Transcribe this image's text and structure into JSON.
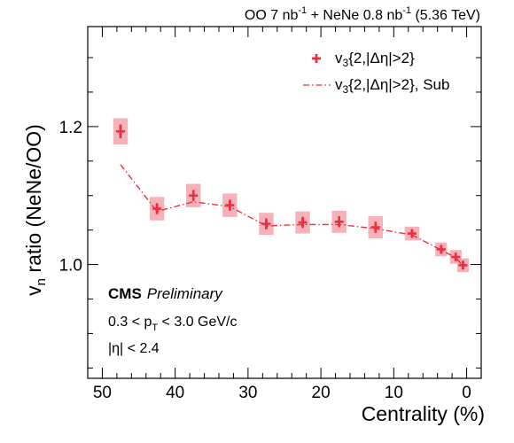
{
  "chart_data": {
    "type": "scatter",
    "header": {
      "a": "OO 7 nb",
      "a_sup": "-1",
      "b": " + NeNe 0.8 nb",
      "b_sup": "-1",
      "c": " (5.36 TeV)"
    },
    "xlabel": "Centrality (%)",
    "ylabel": {
      "v": "v",
      "sub": "n",
      "rest": " ratio (NeNe/OO)"
    },
    "x_reversed": true,
    "xlim": [
      52,
      -2
    ],
    "ylim": [
      0.835,
      1.345
    ],
    "x_ticks": [
      50,
      40,
      30,
      20,
      10,
      0
    ],
    "x_tick_labels": [
      "50",
      "40",
      "30",
      "20",
      "10",
      "0"
    ],
    "y_ticks": [
      1.0,
      1.2
    ],
    "y_tick_labels": [
      "1.0",
      "1.2"
    ],
    "colors": {
      "points": "#e8303f",
      "syst_box": "#f3a5ab",
      "line": "#e8303f"
    },
    "series": [
      {
        "name": "v3{2,|Δη|>2}",
        "legend": {
          "v": "v",
          "sub": "3",
          "rest": "{2,|Δη|>2}"
        },
        "style": "markers",
        "points": [
          {
            "x": 47.5,
            "y": 1.193,
            "err": 0.01,
            "syst": 0.019,
            "xw": 1.0
          },
          {
            "x": 42.5,
            "y": 1.081,
            "err": 0.008,
            "syst": 0.017,
            "xw": 1.0
          },
          {
            "x": 37.5,
            "y": 1.1,
            "err": 0.008,
            "syst": 0.017,
            "xw": 1.0
          },
          {
            "x": 32.5,
            "y": 1.086,
            "err": 0.008,
            "syst": 0.017,
            "xw": 1.0
          },
          {
            "x": 27.5,
            "y": 1.059,
            "err": 0.008,
            "syst": 0.016,
            "xw": 1.0
          },
          {
            "x": 22.5,
            "y": 1.061,
            "err": 0.008,
            "syst": 0.016,
            "xw": 1.0
          },
          {
            "x": 17.5,
            "y": 1.062,
            "err": 0.008,
            "syst": 0.016,
            "xw": 1.0
          },
          {
            "x": 12.5,
            "y": 1.054,
            "err": 0.008,
            "syst": 0.016,
            "xw": 1.0
          },
          {
            "x": 7.5,
            "y": 1.045,
            "err": 0.006,
            "syst": 0.01,
            "xw": 1.0
          },
          {
            "x": 3.5,
            "y": 1.022,
            "err": 0.006,
            "syst": 0.01,
            "xw": 0.8
          },
          {
            "x": 1.5,
            "y": 1.011,
            "err": 0.006,
            "syst": 0.01,
            "xw": 0.8
          },
          {
            "x": 0.5,
            "y": 0.999,
            "err": 0.006,
            "syst": 0.01,
            "xw": 0.8
          }
        ]
      },
      {
        "name": "v3{2,|Δη|>2}, Sub",
        "legend": {
          "v": "v",
          "sub": "3",
          "rest": "{2,|Δη|>2}, Sub"
        },
        "style": "dash-dot-line",
        "points": [
          {
            "x": 47.5,
            "y": 1.145
          },
          {
            "x": 42.5,
            "y": 1.077
          },
          {
            "x": 37.5,
            "y": 1.091
          },
          {
            "x": 32.5,
            "y": 1.084
          },
          {
            "x": 27.5,
            "y": 1.056
          },
          {
            "x": 22.5,
            "y": 1.058
          },
          {
            "x": 17.5,
            "y": 1.058
          },
          {
            "x": 12.5,
            "y": 1.052
          },
          {
            "x": 7.5,
            "y": 1.043
          },
          {
            "x": 3.5,
            "y": 1.021
          },
          {
            "x": 1.5,
            "y": 1.01
          },
          {
            "x": 0.5,
            "y": 0.998
          }
        ]
      }
    ],
    "legend_position": "top-right",
    "annotations": {
      "cms": "CMS",
      "preliminary": "Preliminary",
      "pt": {
        "a": "0.3 < p",
        "sub": "T",
        "b": " < 3.0 GeV/c"
      },
      "eta": "|η| < 2.4"
    }
  }
}
